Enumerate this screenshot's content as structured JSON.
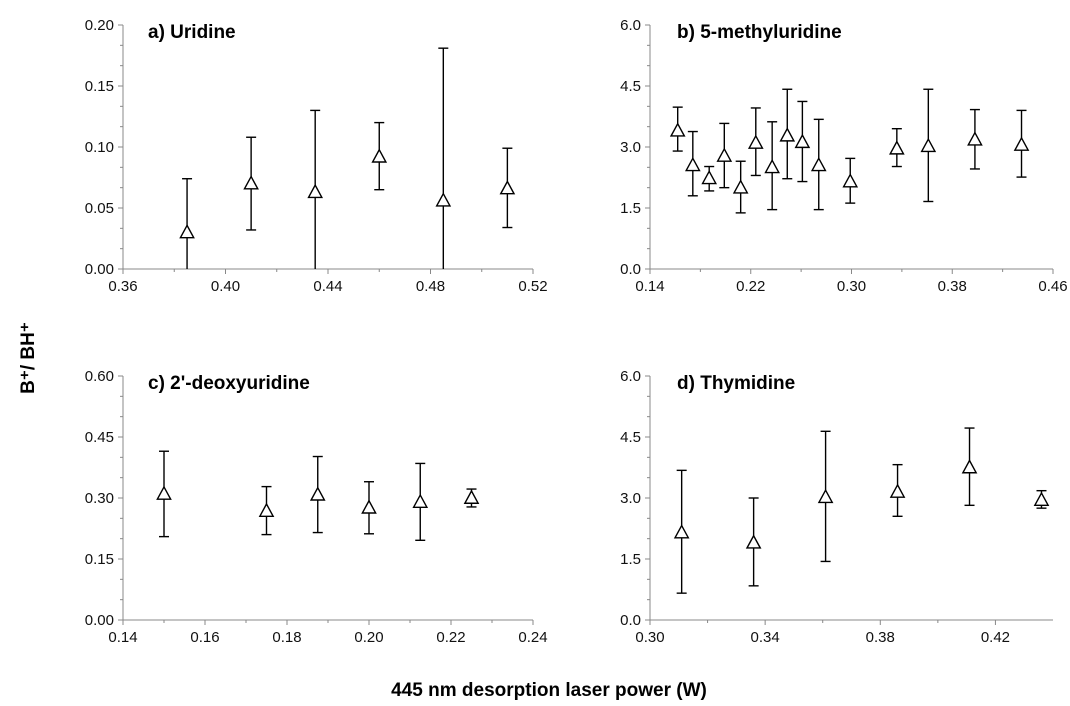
{
  "xlabel": "445 nm desorption laser power (W)",
  "ylabel": "B⁺/ BH⁺",
  "chart_data": [
    {
      "type": "scatter",
      "title": "a) Uridine",
      "xlim": [
        0.36,
        0.52
      ],
      "ylim": [
        0.0,
        0.2
      ],
      "xticks": [
        "0.36",
        "0.40",
        "0.44",
        "0.48",
        "0.52"
      ],
      "yticks": [
        "0.00",
        "0.05",
        "0.10",
        "0.15",
        "0.20"
      ],
      "points": [
        {
          "x": 0.385,
          "y": 0.03,
          "err_low": 0.0,
          "err_high": 0.074
        },
        {
          "x": 0.41,
          "y": 0.07,
          "err_low": 0.032,
          "err_high": 0.108
        },
        {
          "x": 0.435,
          "y": 0.063,
          "err_low": 0.0,
          "err_high": 0.13
        },
        {
          "x": 0.46,
          "y": 0.092,
          "err_low": 0.065,
          "err_high": 0.12
        },
        {
          "x": 0.485,
          "y": 0.056,
          "err_low": 0.0,
          "err_high": 0.181
        },
        {
          "x": 0.51,
          "y": 0.066,
          "err_low": 0.034,
          "err_high": 0.099
        }
      ]
    },
    {
      "type": "scatter",
      "title": "b) 5-methyluridine",
      "xlim": [
        0.14,
        0.46
      ],
      "ylim": [
        0.0,
        6.0
      ],
      "xticks": [
        "0.14",
        "0.22",
        "0.30",
        "0.38",
        "0.46"
      ],
      "yticks": [
        "0.0",
        "1.5",
        "3.0",
        "4.5",
        "6.0"
      ],
      "points": [
        {
          "x": 0.162,
          "y": 3.4,
          "err_low": 2.9,
          "err_high": 3.98
        },
        {
          "x": 0.174,
          "y": 2.55,
          "err_low": 1.8,
          "err_high": 3.38
        },
        {
          "x": 0.187,
          "y": 2.23,
          "err_low": 1.92,
          "err_high": 2.52
        },
        {
          "x": 0.199,
          "y": 2.78,
          "err_low": 2.0,
          "err_high": 3.58
        },
        {
          "x": 0.212,
          "y": 2.0,
          "err_low": 1.38,
          "err_high": 2.65
        },
        {
          "x": 0.224,
          "y": 3.1,
          "err_low": 2.3,
          "err_high": 3.96
        },
        {
          "x": 0.237,
          "y": 2.5,
          "err_low": 1.46,
          "err_high": 3.62
        },
        {
          "x": 0.249,
          "y": 3.28,
          "err_low": 2.22,
          "err_high": 4.42
        },
        {
          "x": 0.261,
          "y": 3.12,
          "err_low": 2.15,
          "err_high": 4.12
        },
        {
          "x": 0.274,
          "y": 2.55,
          "err_low": 1.46,
          "err_high": 3.68
        },
        {
          "x": 0.299,
          "y": 2.15,
          "err_low": 1.62,
          "err_high": 2.72
        },
        {
          "x": 0.336,
          "y": 2.96,
          "err_low": 2.52,
          "err_high": 3.45
        },
        {
          "x": 0.361,
          "y": 3.02,
          "err_low": 1.66,
          "err_high": 4.42
        },
        {
          "x": 0.398,
          "y": 3.18,
          "err_low": 2.46,
          "err_high": 3.92
        },
        {
          "x": 0.435,
          "y": 3.05,
          "err_low": 2.26,
          "err_high": 3.9
        }
      ]
    },
    {
      "type": "scatter",
      "title": "c) 2'-deoxyuridine",
      "xlim": [
        0.14,
        0.24
      ],
      "ylim": [
        0.0,
        0.6
      ],
      "xticks": [
        "0.14",
        "0.16",
        "0.18",
        "0.20",
        "0.22",
        "0.24"
      ],
      "yticks": [
        "0.00",
        "0.15",
        "0.30",
        "0.45",
        "0.60"
      ],
      "points": [
        {
          "x": 0.15,
          "y": 0.31,
          "err_low": 0.205,
          "err_high": 0.415
        },
        {
          "x": 0.175,
          "y": 0.268,
          "err_low": 0.21,
          "err_high": 0.328
        },
        {
          "x": 0.1875,
          "y": 0.308,
          "err_low": 0.215,
          "err_high": 0.402
        },
        {
          "x": 0.2,
          "y": 0.276,
          "err_low": 0.212,
          "err_high": 0.34
        },
        {
          "x": 0.2125,
          "y": 0.29,
          "err_low": 0.196,
          "err_high": 0.385
        },
        {
          "x": 0.225,
          "y": 0.3,
          "err_low": 0.278,
          "err_high": 0.322
        }
      ]
    },
    {
      "type": "scatter",
      "title": "d) Thymidine",
      "xlim": [
        0.3,
        0.44
      ],
      "ylim": [
        0.0,
        6.0
      ],
      "xticks": [
        "0.30",
        "0.34",
        "0.38",
        "0.42"
      ],
      "yticks": [
        "0.0",
        "1.5",
        "3.0",
        "4.5",
        "6.0"
      ],
      "points": [
        {
          "x": 0.311,
          "y": 2.15,
          "err_low": 0.66,
          "err_high": 3.68
        },
        {
          "x": 0.336,
          "y": 1.9,
          "err_low": 0.84,
          "err_high": 3.0
        },
        {
          "x": 0.361,
          "y": 3.02,
          "err_low": 1.44,
          "err_high": 4.64
        },
        {
          "x": 0.386,
          "y": 3.15,
          "err_low": 2.55,
          "err_high": 3.82
        },
        {
          "x": 0.411,
          "y": 3.75,
          "err_low": 2.82,
          "err_high": 4.72
        },
        {
          "x": 0.436,
          "y": 2.95,
          "err_low": 2.75,
          "err_high": 3.18
        }
      ]
    }
  ]
}
